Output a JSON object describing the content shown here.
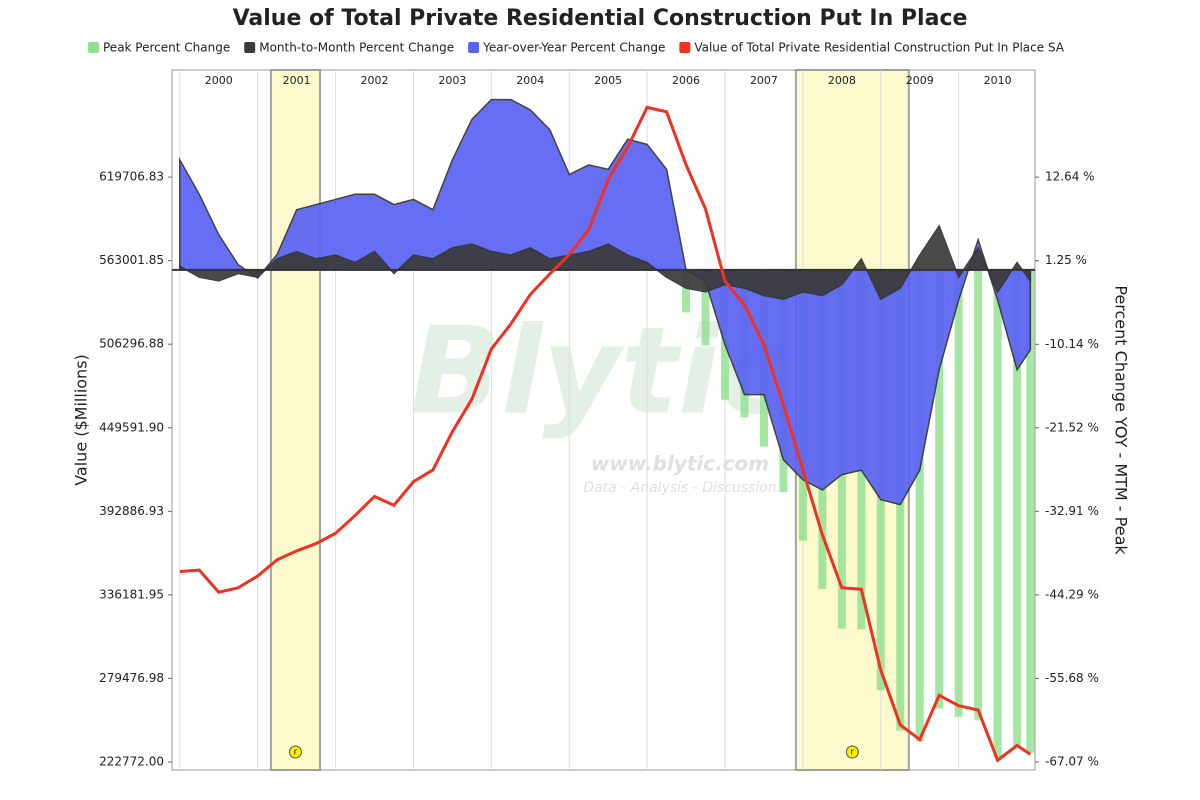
{
  "chart_data": {
    "type": "combo",
    "title": "Value of Total Private Residential Construction Put In Place",
    "ylabel": "Value ($Millions)",
    "y2label": "Percent Change YOY - MTM - Peak",
    "watermark": [
      "Blytic",
      "www.blytic.com",
      "Data - Analysis - Discussion"
    ],
    "xlim": [
      1999.9,
      2010.98
    ],
    "xticks": [
      2000,
      2001,
      2002,
      2003,
      2004,
      2005,
      2006,
      2007,
      2008,
      2009,
      2010
    ],
    "ylim": [
      217340,
      692370
    ],
    "yticks": [
      {
        "value": 222772.0,
        "label": "222772.00"
      },
      279476.98,
      336181.95,
      392886.93,
      {
        "value": 449591.9,
        "label": "449591.90"
      },
      506296.88,
      563001.85,
      619706.83
    ],
    "y2lim": [
      -68.16,
      27.24
    ],
    "y2ticks": [
      {
        "value": -67.07,
        "label": "-67.07 %"
      },
      {
        "value": -55.68,
        "label": "-55.68 %"
      },
      {
        "value": -44.29,
        "label": "-44.29 %"
      },
      {
        "value": -32.91,
        "label": "-32.91 %"
      },
      {
        "value": -21.52,
        "label": "-21.52 %"
      },
      {
        "value": -10.14,
        "label": "-10.14 %"
      },
      {
        "value": 1.25,
        "label": "1.25 %"
      },
      {
        "value": 12.64,
        "label": "12.64 %"
      }
    ],
    "grid": true,
    "recessions": [
      {
        "start": 2001.17,
        "end": 2001.8,
        "label": "r"
      },
      {
        "start": 2007.91,
        "end": 2009.36,
        "label": "r"
      }
    ],
    "x": [
      2000,
      2000.25,
      2000.5,
      2000.75,
      2001,
      2001.25,
      2001.5,
      2001.75,
      2002,
      2002.25,
      2002.5,
      2002.75,
      2003,
      2003.25,
      2003.5,
      2003.75,
      2004,
      2004.25,
      2004.5,
      2004.75,
      2005,
      2005.25,
      2005.5,
      2005.75,
      2006,
      2006.25,
      2006.5,
      2006.75,
      2007,
      2007.25,
      2007.5,
      2007.75,
      2008,
      2008.25,
      2008.5,
      2008.75,
      2009,
      2009.25,
      2009.5,
      2009.75,
      2010,
      2010.25,
      2010.5,
      2010.75,
      2010.92
    ],
    "series": [
      {
        "name": "Peak Percent Change",
        "type": "bar",
        "axis": "y2",
        "color": "#8fe08f",
        "values": [
          null,
          null,
          null,
          null,
          null,
          null,
          null,
          null,
          null,
          null,
          null,
          null,
          null,
          null,
          null,
          null,
          null,
          null,
          null,
          null,
          null,
          null,
          null,
          null,
          0,
          -0.5,
          -5.8,
          -10.3,
          -17.7,
          -20.1,
          -24.1,
          -30.3,
          -36.9,
          -43.5,
          -48.9,
          -49.0,
          -57.3,
          -62.8,
          -64.3,
          -59.8,
          -60.9,
          -61.3,
          -66.4,
          -64.9,
          -65.8
        ]
      },
      {
        "name": "Month-to-Month Percent Change",
        "type": "area",
        "axis": "y2",
        "color": "#3a3a3a",
        "values": [
          0.5,
          -1.0,
          -1.5,
          -0.5,
          -1.0,
          1.5,
          2.5,
          1.5,
          2.0,
          1.0,
          2.5,
          -0.5,
          2.0,
          1.5,
          3.0,
          3.5,
          2.5,
          2.0,
          3.0,
          1.5,
          2.0,
          2.5,
          3.5,
          2.0,
          1.0,
          -1.0,
          -2.5,
          -3.0,
          -2.0,
          -2.5,
          -3.5,
          -4.0,
          -3.0,
          -3.5,
          -2.0,
          1.5,
          -4.0,
          -2.5,
          2.0,
          6.0,
          -1.0,
          3.0,
          -3.0,
          1.0,
          -1.5
        ]
      },
      {
        "name": "Year-over-Year Percent Change",
        "type": "area",
        "axis": "y2",
        "color": "#5a62f2",
        "values": [
          15.0,
          10.3,
          4.8,
          0.7,
          -1.1,
          2.1,
          8.2,
          8.9,
          9.6,
          10.3,
          10.3,
          8.9,
          9.6,
          8.2,
          15.0,
          20.5,
          23.2,
          23.2,
          21.8,
          19.1,
          13.0,
          14.3,
          13.7,
          17.8,
          17.1,
          13.7,
          0.0,
          -1.6,
          -10.2,
          -17.0,
          -17.0,
          -25.9,
          -28.6,
          -30.0,
          -27.9,
          -27.3,
          -31.3,
          -32.0,
          -27.3,
          -13.6,
          -4.1,
          4.1,
          -4.1,
          -13.6,
          -10.9
        ]
      },
      {
        "name": "Value of Total Private Residential Construction Put In Place SA",
        "type": "line",
        "color": "#f03020",
        "values": [
          352000,
          353000,
          338000,
          341000,
          349000,
          360000,
          366000,
          371000,
          378000,
          390000,
          403000,
          397000,
          413000,
          421000,
          447000,
          469000,
          503000,
          520000,
          540000,
          554000,
          567000,
          584000,
          618000,
          640000,
          667000,
          664000,
          628000,
          598000,
          549000,
          533000,
          506000,
          465000,
          421000,
          377000,
          341000,
          340000,
          285000,
          248000,
          238000,
          268000,
          261000,
          258000,
          224000,
          234000,
          228000
        ]
      }
    ]
  }
}
